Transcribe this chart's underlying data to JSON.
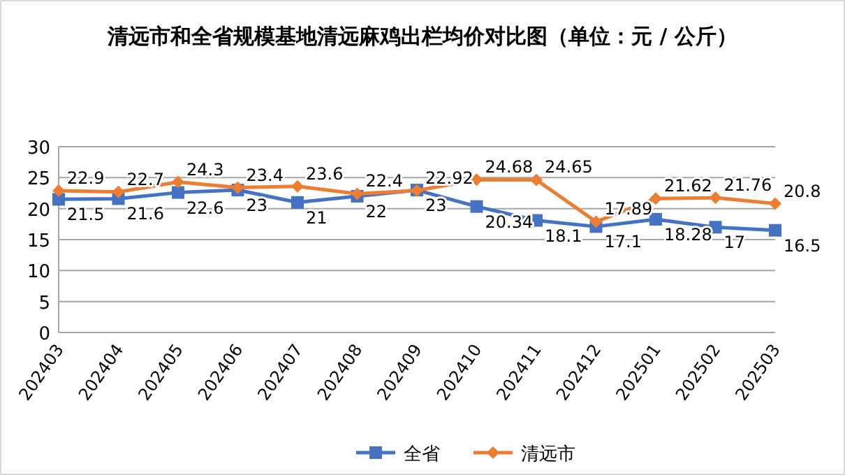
{
  "chart_data": {
    "type": "line",
    "title": "清远市和全省规模基地清远麻鸡出栏均价对比图（单位：元 / 公斤）",
    "categories": [
      "202403",
      "202404",
      "202405",
      "202406",
      "202407",
      "202408",
      "202409",
      "202410",
      "202411",
      "202412",
      "202501",
      "202502",
      "202503"
    ],
    "series": [
      {
        "name": "全省",
        "color": "#4472c4",
        "marker": "square",
        "values": [
          21.5,
          21.6,
          22.6,
          23,
          21,
          22,
          23,
          20.34,
          18.1,
          17.1,
          18.28,
          17,
          16.5
        ]
      },
      {
        "name": "清远市",
        "color": "#ed7d31",
        "marker": "diamond",
        "values": [
          22.9,
          22.7,
          24.3,
          23.4,
          23.6,
          22.4,
          22.92,
          24.68,
          24.65,
          17.89,
          21.62,
          21.76,
          20.8
        ]
      }
    ],
    "ylim": [
      0,
      30
    ],
    "yticks": [
      0,
      5,
      10,
      15,
      20,
      25,
      30
    ],
    "grid": "y",
    "legend": "bottom",
    "data_labels": true
  }
}
